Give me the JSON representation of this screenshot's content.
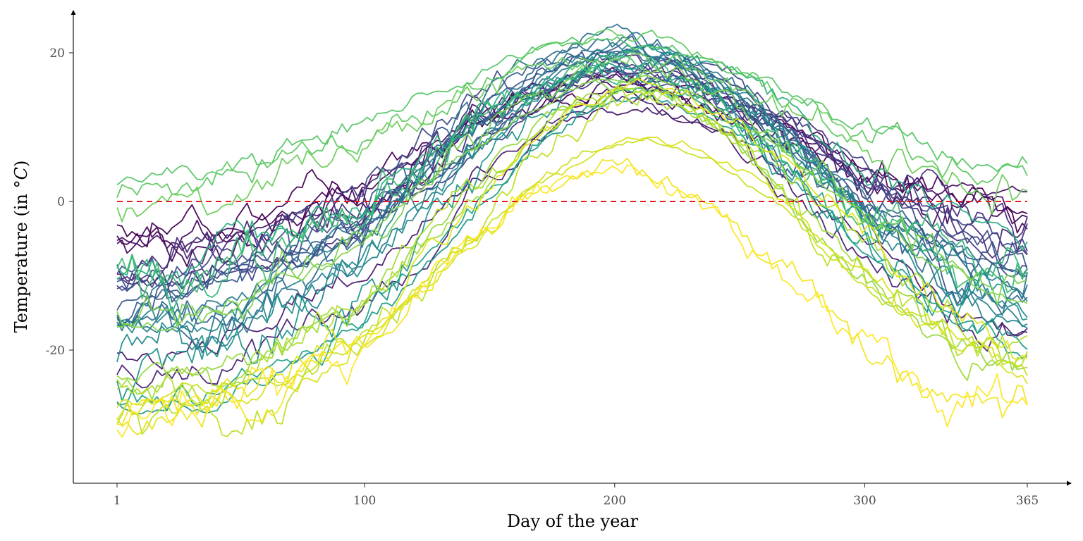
{
  "chart_data": {
    "type": "line",
    "title": "",
    "xlabel": "Day of the year",
    "ylabel_parts": {
      "text": "Temperature (in ",
      "unit": "°C",
      "close": ")"
    },
    "xlim": [
      1,
      365
    ],
    "ylim": [
      -37,
      26
    ],
    "x_ticks": [
      1,
      100,
      200,
      300,
      365
    ],
    "y_ticks": [
      20,
      0,
      -20
    ],
    "y_tick_labels": [
      "20",
      "0",
      "-20"
    ],
    "reference_line": {
      "y": 0,
      "color": "#e41a1c",
      "style": "dashed"
    },
    "grid": false,
    "legend": "none",
    "colormap": "viridis",
    "series_description": "Daily temperature curves for many stations, each following a seasonal cycle; values below are (winter_start, summer_peak, winter_end) estimates read from the figure.",
    "series": [
      {
        "color": "#440154",
        "start": -3.5,
        "peak": 14.5,
        "end": -4.0
      },
      {
        "color": "#440154",
        "start": -4.5,
        "peak": 15.5,
        "end": -3.5
      },
      {
        "color": "#46085c",
        "start": -5.5,
        "peak": 16.0,
        "end": -5.0
      },
      {
        "color": "#471063",
        "start": -6.5,
        "peak": 16.5,
        "end": -2.5
      },
      {
        "color": "#481a6c",
        "start": -22.5,
        "peak": 13.0,
        "end": -22.0
      },
      {
        "color": "#482173",
        "start": -25.0,
        "peak": 13.5,
        "end": -21.0
      },
      {
        "color": "#482878",
        "start": -8.0,
        "peak": 17.0,
        "end": -7.0
      },
      {
        "color": "#472e7c",
        "start": -9.0,
        "peak": 17.5,
        "end": -6.0
      },
      {
        "color": "#453781",
        "start": -10.5,
        "peak": 18.0,
        "end": -9.0
      },
      {
        "color": "#433e85",
        "start": -11.5,
        "peak": 18.5,
        "end": -8.5
      },
      {
        "color": "#414487",
        "start": -12.0,
        "peak": 19.0,
        "end": -10.0
      },
      {
        "color": "#3e4989",
        "start": -13.0,
        "peak": 19.5,
        "end": -11.0
      },
      {
        "color": "#3b528b",
        "start": -13.5,
        "peak": 19.0,
        "end": -12.0
      },
      {
        "color": "#38598c",
        "start": -14.5,
        "peak": 20.0,
        "end": -11.5
      },
      {
        "color": "#355f8d",
        "start": -15.0,
        "peak": 20.5,
        "end": -13.0
      },
      {
        "color": "#31688e",
        "start": -16.0,
        "peak": 21.0,
        "end": -14.0
      },
      {
        "color": "#2e6e8e",
        "start": -16.5,
        "peak": 20.5,
        "end": -13.5
      },
      {
        "color": "#2c728e",
        "start": -17.0,
        "peak": 21.5,
        "end": -15.0
      },
      {
        "color": "#29798e",
        "start": -18.0,
        "peak": 20.0,
        "end": -16.0
      },
      {
        "color": "#26828e",
        "start": -18.5,
        "peak": 21.0,
        "end": -17.0
      },
      {
        "color": "#24868e",
        "start": -19.0,
        "peak": 19.5,
        "end": -18.0
      },
      {
        "color": "#228c8d",
        "start": -20.5,
        "peak": 18.5,
        "end": -19.0
      },
      {
        "color": "#1f958b",
        "start": -22.0,
        "peak": 18.0,
        "end": -20.0
      },
      {
        "color": "#1f9a8a",
        "start": -27.5,
        "peak": 14.0,
        "end": -23.0
      },
      {
        "color": "#20a386",
        "start": -28.0,
        "peak": 15.0,
        "end": -24.5
      },
      {
        "color": "#29af7f",
        "start": -9.5,
        "peak": 19.5,
        "end": -10.5
      },
      {
        "color": "#35b779",
        "start": -11.0,
        "peak": 18.5,
        "end": -12.0
      },
      {
        "color": "#3fbc73",
        "start": -12.5,
        "peak": 19.0,
        "end": -14.0
      },
      {
        "color": "#55c667",
        "start": 2.5,
        "peak": 21.5,
        "end": 2.5
      },
      {
        "color": "#5ec962",
        "start": 1.5,
        "peak": 22.0,
        "end": 3.0
      },
      {
        "color": "#6ccd5a",
        "start": 0.5,
        "peak": 20.0,
        "end": 1.5
      },
      {
        "color": "#7ad151",
        "start": -16.0,
        "peak": 17.5,
        "end": -15.0
      },
      {
        "color": "#84d44b",
        "start": -18.0,
        "peak": 16.5,
        "end": -17.0
      },
      {
        "color": "#95d840",
        "start": -24.0,
        "peak": 15.5,
        "end": -25.0
      },
      {
        "color": "#a0da39",
        "start": -26.0,
        "peak": 14.5,
        "end": -26.5
      },
      {
        "color": "#b0dd2f",
        "start": -27.0,
        "peak": 14.0,
        "end": -24.0
      },
      {
        "color": "#bddf26",
        "start": -28.5,
        "peak": 13.5,
        "end": -26.0
      },
      {
        "color": "#c8e020",
        "start": -27.5,
        "peak": 8.5,
        "end": -25.5
      },
      {
        "color": "#d8e219",
        "start": -29.0,
        "peak": 8.0,
        "end": -27.0
      },
      {
        "color": "#e2e418",
        "start": -30.5,
        "peak": 15.0,
        "end": -25.0
      },
      {
        "color": "#f1e51d",
        "start": -31.0,
        "peak": 5.0,
        "end": -30.0
      },
      {
        "color": "#fde725",
        "start": -32.0,
        "peak": 4.5,
        "end": -30.5
      }
    ]
  }
}
